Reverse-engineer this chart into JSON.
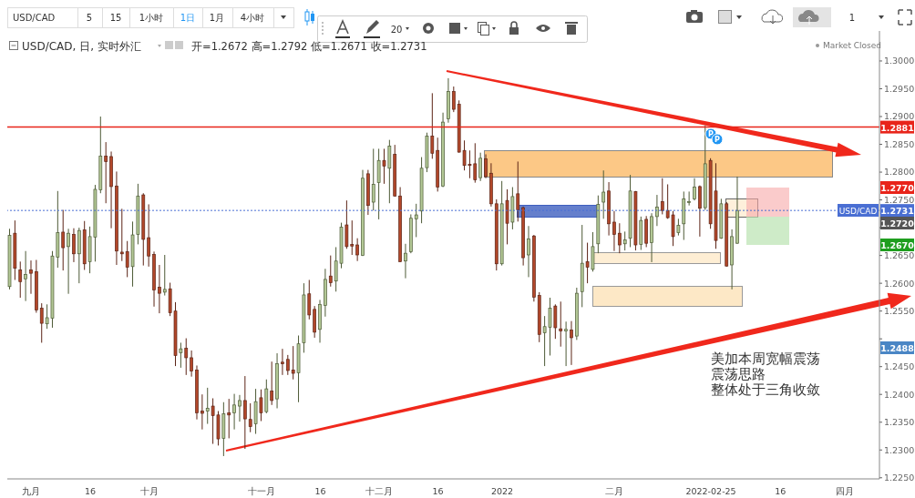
{
  "chart_data": {
    "type": "candlestick",
    "title": "USD/CAD, 日, 实时外汇",
    "subtitle": "开=1.2672 高=1.2792 低=1.2671 收=1.2731",
    "categories": [
      null,
      null,
      null,
      null,
      "九月",
      null,
      null,
      null,
      null,
      null,
      null,
      null,
      null,
      null,
      null,
      "16",
      null,
      null,
      null,
      null,
      null,
      null,
      null,
      null,
      null,
      null,
      "十月",
      null,
      null,
      null,
      null,
      null,
      null,
      null,
      null,
      null,
      null,
      null,
      null,
      null,
      null,
      null,
      null,
      null,
      null,
      null,
      null,
      "十一月",
      null,
      null,
      null,
      null,
      null,
      null,
      null,
      null,
      null,
      null,
      "16",
      null,
      null,
      null,
      null,
      null,
      null,
      null,
      null,
      null,
      null,
      "十二月",
      null,
      null,
      null,
      null,
      null,
      null,
      null,
      null,
      null,
      null,
      "16",
      null,
      null,
      null,
      null,
      null,
      null,
      null,
      null,
      null,
      null,
      null,
      "2022",
      null,
      null,
      null,
      null,
      null,
      null,
      null,
      null,
      null,
      null,
      null,
      null,
      null,
      null,
      null,
      null,
      null,
      null,
      null,
      null,
      "二月",
      null,
      null,
      null,
      null,
      null,
      null,
      null,
      null,
      null,
      null,
      null,
      null,
      null,
      null,
      null,
      null,
      null,
      "2022-02-25",
      null,
      null,
      null,
      null,
      null,
      null,
      null,
      null,
      null,
      null,
      null,
      null,
      "16",
      null,
      null,
      null,
      null,
      null,
      null,
      null,
      null,
      null,
      null,
      null,
      "四月",
      null,
      null,
      null,
      null,
      null,
      null
    ],
    "ohlc": [
      [
        1.2594,
        1.2698,
        1.2589,
        1.2686
      ],
      [
        1.269,
        1.2713,
        1.2606,
        1.2627
      ],
      [
        1.2624,
        1.2639,
        1.2574,
        1.2603
      ],
      [
        1.2608,
        1.2658,
        1.2568,
        1.2616
      ],
      [
        1.2624,
        1.2641,
        1.2581,
        1.2618
      ],
      [
        1.2621,
        1.2642,
        1.2547,
        1.2552
      ],
      [
        1.2555,
        1.2564,
        1.2493,
        1.2528
      ],
      [
        1.2527,
        1.2562,
        1.2518,
        1.2538
      ],
      [
        1.2537,
        1.2658,
        1.252,
        1.2649
      ],
      [
        1.2647,
        1.2766,
        1.2628,
        1.2691
      ],
      [
        1.2692,
        1.2732,
        1.2623,
        1.2664
      ],
      [
        1.2666,
        1.2698,
        1.2581,
        1.269
      ],
      [
        1.2688,
        1.2699,
        1.2638,
        1.2653
      ],
      [
        1.2653,
        1.27,
        1.26,
        1.2695
      ],
      [
        1.2696,
        1.2712,
        1.2624,
        1.2635
      ],
      [
        1.2639,
        1.2702,
        1.2618,
        1.2684
      ],
      [
        1.2683,
        1.2777,
        1.2639,
        1.2769
      ],
      [
        1.2768,
        1.29,
        1.2762,
        1.2829
      ],
      [
        1.2829,
        1.2854,
        1.2744,
        1.2819
      ],
      [
        1.2828,
        1.2837,
        1.2699,
        1.2774
      ],
      [
        1.2775,
        1.2801,
        1.2633,
        1.2658
      ],
      [
        1.2656,
        1.2734,
        1.264,
        1.2653
      ],
      [
        1.2657,
        1.2676,
        1.2611,
        1.2629
      ],
      [
        1.263,
        1.2711,
        1.2594,
        1.2687
      ],
      [
        1.2688,
        1.2779,
        1.267,
        1.2757
      ],
      [
        1.2759,
        1.2762,
        1.2632,
        1.2679
      ],
      [
        1.2682,
        1.2742,
        1.263,
        1.2649
      ],
      [
        1.2652,
        1.2657,
        1.2558,
        1.2588
      ],
      [
        1.2593,
        1.2633,
        1.2546,
        1.2582
      ],
      [
        1.2584,
        1.2651,
        1.2578,
        1.2589
      ],
      [
        1.259,
        1.2601,
        1.2541,
        1.2547
      ],
      [
        1.255,
        1.2566,
        1.2451,
        1.247
      ],
      [
        1.2475,
        1.2493,
        1.2448,
        1.2482
      ],
      [
        1.2483,
        1.2501,
        1.2435,
        1.2466
      ],
      [
        1.2466,
        1.2479,
        1.2432,
        1.2442
      ],
      [
        1.2444,
        1.2452,
        1.2355,
        1.2367
      ],
      [
        1.237,
        1.24,
        1.2337,
        1.2366
      ],
      [
        1.237,
        1.2412,
        1.2347,
        1.2375
      ],
      [
        1.2379,
        1.2393,
        1.2311,
        1.2362
      ],
      [
        1.2363,
        1.237,
        1.2308,
        1.232
      ],
      [
        1.2321,
        1.2386,
        1.2289,
        1.2365
      ],
      [
        1.2367,
        1.2392,
        1.2321,
        1.2363
      ],
      [
        1.2367,
        1.2401,
        1.2337,
        1.2381
      ],
      [
        1.2379,
        1.2399,
        1.2351,
        1.2389
      ],
      [
        1.2389,
        1.2433,
        1.2302,
        1.2356
      ],
      [
        1.2355,
        1.2384,
        1.2332,
        1.2342
      ],
      [
        1.2347,
        1.241,
        1.2329,
        1.2387
      ],
      [
        1.2394,
        1.2409,
        1.2352,
        1.2367
      ],
      [
        1.2369,
        1.2427,
        1.2366,
        1.241
      ],
      [
        1.2406,
        1.2459,
        1.2381,
        1.2389
      ],
      [
        1.2392,
        1.2474,
        1.2375,
        1.2455
      ],
      [
        1.2458,
        1.2482,
        1.2435,
        1.2455
      ],
      [
        1.2463,
        1.2471,
        1.2435,
        1.2443
      ],
      [
        1.2444,
        1.2487,
        1.2427,
        1.2438
      ],
      [
        1.2439,
        1.2506,
        1.2386,
        1.2491
      ],
      [
        1.2493,
        1.26,
        1.2475,
        1.2579
      ],
      [
        1.2581,
        1.2606,
        1.2535,
        1.2543
      ],
      [
        1.2553,
        1.2559,
        1.2502,
        1.2512
      ],
      [
        1.2517,
        1.257,
        1.2493,
        1.2562
      ],
      [
        1.256,
        1.2626,
        1.254,
        1.2607
      ],
      [
        1.2613,
        1.265,
        1.2594,
        1.2601
      ],
      [
        1.2604,
        1.2665,
        1.2585,
        1.264
      ],
      [
        1.2636,
        1.2709,
        1.2627,
        1.2701
      ],
      [
        1.2705,
        1.2749,
        1.2662,
        1.2666
      ],
      [
        1.267,
        1.2713,
        1.2651,
        1.2667
      ],
      [
        1.2669,
        1.2681,
        1.264,
        1.2651
      ],
      [
        1.265,
        1.2804,
        1.2649,
        1.2789
      ],
      [
        1.2797,
        1.2804,
        1.2723,
        1.274
      ],
      [
        1.2746,
        1.2842,
        1.2731,
        1.2778
      ],
      [
        1.2781,
        1.2842,
        1.2715,
        1.2821
      ],
      [
        1.2821,
        1.2842,
        1.2779,
        1.2811
      ],
      [
        1.2807,
        1.2858,
        1.2744,
        1.2847
      ],
      [
        1.2832,
        1.2849,
        1.2756,
        1.2757
      ],
      [
        1.2757,
        1.2773,
        1.2638,
        1.2639
      ],
      [
        1.264,
        1.2671,
        1.2609,
        1.2654
      ],
      [
        1.2657,
        1.2724,
        1.2654,
        1.2717
      ],
      [
        1.2716,
        1.2743,
        1.2683,
        1.2723
      ],
      [
        1.273,
        1.2827,
        1.2708,
        1.2807
      ],
      [
        1.2808,
        1.2871,
        1.28,
        1.2865
      ],
      [
        1.2865,
        1.2942,
        1.2824,
        1.2834
      ],
      [
        1.2839,
        1.2862,
        1.2765,
        1.2773
      ],
      [
        1.2775,
        1.2907,
        1.2773,
        1.289
      ],
      [
        1.2896,
        1.2969,
        1.2889,
        1.2945
      ],
      [
        1.2945,
        1.2954,
        1.2908,
        1.2913
      ],
      [
        1.2922,
        1.2929,
        1.2835,
        1.2836
      ],
      [
        1.2839,
        1.2857,
        1.2803,
        1.2812
      ],
      [
        1.2814,
        1.2839,
        1.2789,
        1.2812
      ],
      [
        1.2815,
        1.2852,
        1.2781,
        1.2786
      ],
      [
        1.279,
        1.2835,
        1.2784,
        1.2825
      ],
      [
        1.2824,
        1.2832,
        1.2789,
        1.2792
      ],
      [
        1.2798,
        1.2816,
        1.2738,
        1.2743
      ],
      [
        1.2743,
        1.2751,
        1.2623,
        1.2635
      ],
      [
        1.2635,
        1.2784,
        1.2632,
        1.2743
      ],
      [
        1.2749,
        1.2769,
        1.267,
        1.2708
      ],
      [
        1.271,
        1.2773,
        1.2697,
        1.2756
      ],
      [
        1.2761,
        1.2819,
        1.2711,
        1.2732
      ],
      [
        1.2736,
        1.2738,
        1.2632,
        1.2646
      ],
      [
        1.2651,
        1.2703,
        1.2611,
        1.268
      ],
      [
        1.2685,
        1.2687,
        1.2567,
        1.2575
      ],
      [
        1.2578,
        1.2584,
        1.2494,
        1.2508
      ],
      [
        1.2511,
        1.2541,
        1.2451,
        1.2522
      ],
      [
        1.2521,
        1.2574,
        1.247,
        1.2555
      ],
      [
        1.2559,
        1.2562,
        1.25,
        1.252
      ],
      [
        1.2518,
        1.2567,
        1.2486,
        1.2514
      ],
      [
        1.2514,
        1.2531,
        1.2451,
        1.2517
      ],
      [
        1.2516,
        1.2532,
        1.2453,
        1.2502
      ],
      [
        1.2505,
        1.2592,
        1.2498,
        1.2582
      ],
      [
        1.2585,
        1.2705,
        1.2557,
        1.2636
      ],
      [
        1.2639,
        1.2673,
        1.26,
        1.2629
      ],
      [
        1.2625,
        1.2692,
        1.2621,
        1.2666
      ],
      [
        1.2671,
        1.2758,
        1.2654,
        1.2742
      ],
      [
        1.2746,
        1.2803,
        1.2716,
        1.2764
      ],
      [
        1.2766,
        1.2782,
        1.2686,
        1.2707
      ],
      [
        1.271,
        1.273,
        1.2658,
        1.2688
      ],
      [
        1.269,
        1.2708,
        1.2654,
        1.2669
      ],
      [
        1.2671,
        1.2693,
        1.2659,
        1.2678
      ],
      [
        1.2681,
        1.2795,
        1.2665,
        1.2766
      ],
      [
        1.2765,
        1.2766,
        1.2659,
        1.2669
      ],
      [
        1.267,
        1.272,
        1.266,
        1.2713
      ],
      [
        1.2715,
        1.2721,
        1.2665,
        1.2672
      ],
      [
        1.2673,
        1.2726,
        1.2638,
        1.272
      ],
      [
        1.272,
        1.2759,
        1.2703,
        1.2737
      ],
      [
        1.2747,
        1.2789,
        1.2724,
        1.2731
      ],
      [
        1.2731,
        1.2778,
        1.2716,
        1.2718
      ],
      [
        1.2723,
        1.273,
        1.2667,
        1.2684
      ],
      [
        1.2691,
        1.2716,
        1.2686,
        1.2704
      ],
      [
        1.2707,
        1.2765,
        1.2678,
        1.2752
      ],
      [
        1.2745,
        1.2765,
        1.274,
        1.2747
      ],
      [
        1.2752,
        1.2789,
        1.2749,
        1.2773
      ],
      [
        1.2774,
        1.2776,
        1.2684,
        1.2735
      ],
      [
        1.2736,
        1.2884,
        1.2732,
        1.2815
      ],
      [
        1.2821,
        1.2825,
        1.2698,
        1.2707
      ],
      [
        1.2766,
        1.2816,
        1.2662,
        1.2677
      ],
      [
        1.2681,
        1.2752,
        1.268,
        1.2743
      ],
      [
        1.2743,
        1.2746,
        1.263,
        1.2631
      ],
      [
        1.2633,
        1.2697,
        1.2589,
        1.2684
      ],
      [
        1.2672,
        1.2792,
        1.2671,
        1.2731
      ],
      null,
      null,
      null,
      null,
      null,
      null,
      null,
      null,
      null,
      null,
      null,
      null,
      null,
      null,
      null,
      null,
      null,
      null,
      null,
      null,
      null,
      null,
      null,
      null,
      null,
      null
    ],
    "ylim": [
      1.2248,
      1.3054
    ],
    "yticks": [
      {
        "value": 1.225,
        "label": "1.2250"
      },
      {
        "value": 1.23,
        "label": "1.2300"
      },
      {
        "value": 1.235,
        "label": "1.2350"
      },
      {
        "value": 1.24,
        "label": "1.2400"
      },
      {
        "value": 1.245,
        "label": "1.2450"
      },
      {
        "value": 1.25,
        "label": null
      },
      {
        "value": 1.255,
        "label": "1.2550"
      },
      {
        "value": 1.26,
        "label": "1.2600"
      },
      {
        "value": 1.265,
        "label": "1.2650"
      },
      {
        "value": 1.27,
        "label": null
      },
      {
        "value": 1.275,
        "label": "1.2750"
      },
      {
        "value": 1.28,
        "label": "1.2800"
      },
      {
        "value": 1.285,
        "label": "1.2850"
      },
      {
        "value": 1.29,
        "label": "1.2900"
      },
      {
        "value": 1.295,
        "label": "1.2950"
      },
      {
        "value": 1.3,
        "label": "1.3000"
      }
    ],
    "ref_lines": [
      {
        "axis": "y",
        "value": 1.2881,
        "label": "1.2881",
        "color": "#e8241a"
      },
      {
        "axis": "y",
        "value": 1.2731,
        "label": "1.2731",
        "color": "#4a6fd3",
        "line_style": "dotted"
      }
    ],
    "annotations": [
      "美加本周宽幅震荡",
      "震荡思路",
      "整体处于三角收敛",
      "Market Closed",
      "USD/CAD",
      "1.2770",
      "1.2720",
      "1.2670",
      "1.2488",
      "P",
      "P",
      "USD/CAD",
      "5",
      "15",
      "1小时",
      "1日",
      "1月",
      "4小时",
      "20",
      "1"
    ]
  }
}
